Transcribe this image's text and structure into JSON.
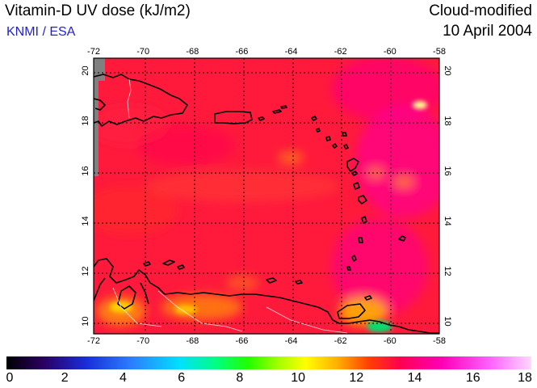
{
  "header": {
    "title": "Vitamin-D UV dose (kJ/m2)",
    "agency": "KNMI / ESA",
    "product": "Cloud-modified",
    "date": "10 April 2004"
  },
  "map": {
    "lon_range": [
      -72,
      -58
    ],
    "lat_range": [
      9.5,
      20.5
    ],
    "lon_ticks": [
      "-72",
      "-70",
      "-68",
      "-66",
      "-64",
      "-62",
      "-60",
      "-58"
    ],
    "lat_ticks": [
      "10",
      "12",
      "14",
      "16",
      "18",
      "20"
    ],
    "gridlines": "dotted",
    "colors": {
      "background_field": "#ff1a3c",
      "land_mask": "#808080",
      "coastline": "#000000",
      "borders": "#ffffff"
    }
  },
  "colorbar": {
    "min": 0,
    "max": 18,
    "ticks": [
      "0",
      "2",
      "4",
      "6",
      "8",
      "10",
      "12",
      "14",
      "16",
      "18"
    ]
  }
}
